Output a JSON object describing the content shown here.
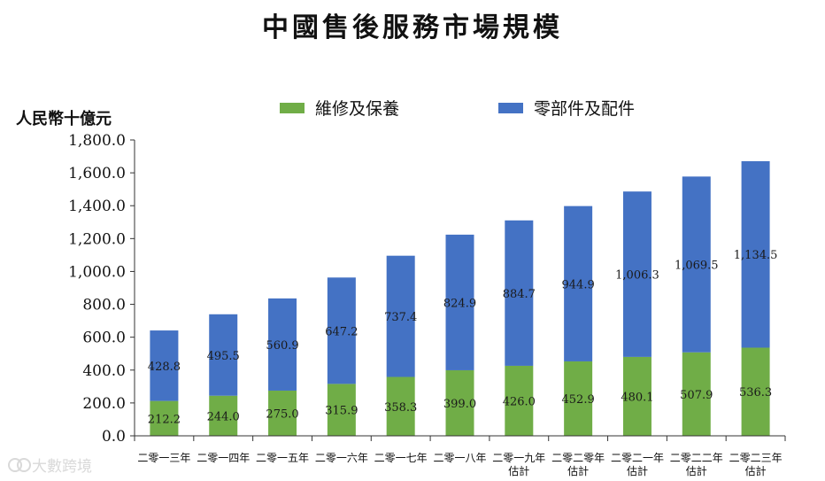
{
  "chart_data": {
    "type": "bar",
    "stacked": true,
    "title": "中國售後服務市場規模",
    "ylabel": "人民幣十億元",
    "ylim": [
      0,
      1800
    ],
    "yticks": [
      "0.0",
      "200.0",
      "400.0",
      "600.0",
      "800.0",
      "1,000.0",
      "1,200.0",
      "1,400.0",
      "1,600.0",
      "1,800.0"
    ],
    "legend_position": "top",
    "categories": [
      [
        "二零一三年"
      ],
      [
        "二零一四年"
      ],
      [
        "二零一五年"
      ],
      [
        "二零一六年"
      ],
      [
        "二零一七年"
      ],
      [
        "二零一八年"
      ],
      [
        "二零一九年",
        "估計"
      ],
      [
        "二零二零年",
        "估計"
      ],
      [
        "二零二一年",
        "估計"
      ],
      [
        "二零二二年",
        "估計"
      ],
      [
        "二零二三年",
        "估計"
      ]
    ],
    "series": [
      {
        "name": "維修及保養",
        "color": "#70AD47",
        "values": [
          212.2,
          244.0,
          275.0,
          315.9,
          358.3,
          399.0,
          426.0,
          452.9,
          480.1,
          507.9,
          536.3
        ],
        "labels": [
          "212.2",
          "244.0",
          "275.0",
          "315.9",
          "358.3",
          "399.0",
          "426.0",
          "452.9",
          "480.1",
          "507.9",
          "536.3"
        ]
      },
      {
        "name": "零部件及配件",
        "color": "#4472C4",
        "values": [
          428.8,
          495.5,
          560.9,
          647.2,
          737.4,
          824.9,
          884.7,
          944.9,
          1006.3,
          1069.5,
          1134.5
        ],
        "labels": [
          "428.8",
          "495.5",
          "560.9",
          "647.2",
          "737.4",
          "824.9",
          "884.7",
          "944.9",
          "1,006.3",
          "1,069.5",
          "1,134.5"
        ]
      }
    ]
  },
  "watermark": {
    "text": "大數跨境"
  }
}
